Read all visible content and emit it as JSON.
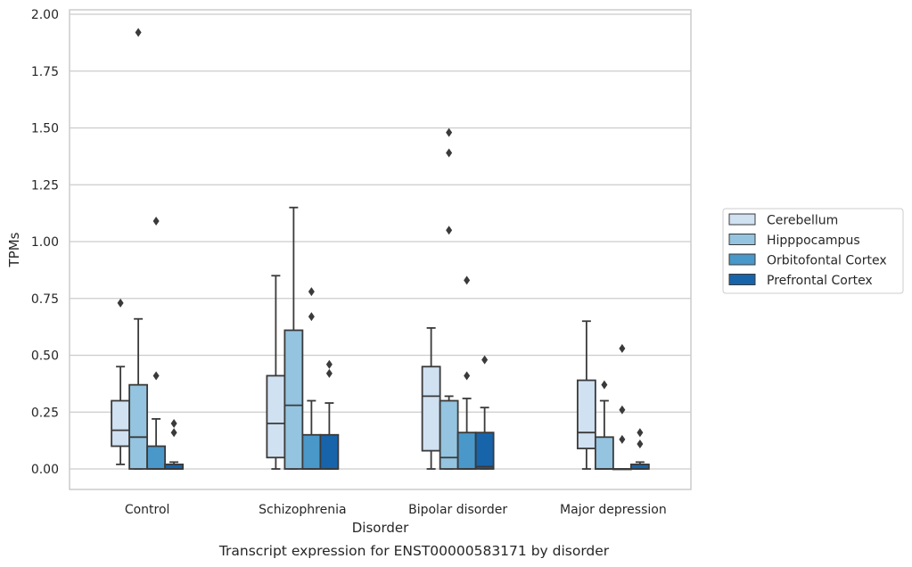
{
  "chart_data": {
    "type": "box",
    "caption": "Transcript expression for ENST00000583171 by disorder",
    "xlabel": "Disorder",
    "ylabel": "TPMs",
    "ylim": [
      -0.09,
      2.02
    ],
    "yticks": [
      "0.00",
      "0.25",
      "0.50",
      "0.75",
      "1.00",
      "1.25",
      "1.50",
      "1.75",
      "2.00"
    ],
    "categories": [
      "Control",
      "Schizophrenia",
      "Bipolar disorder",
      "Major depression"
    ],
    "grid": true,
    "legend_position": "right",
    "series": [
      {
        "name": "Cerebellum",
        "color": "#d0e1f2",
        "boxes": [
          {
            "whislo": 0.02,
            "q1": 0.1,
            "med": 0.17,
            "q3": 0.3,
            "whishi": 0.45,
            "fliers": [
              0.73
            ]
          },
          {
            "whislo": 0.0,
            "q1": 0.05,
            "med": 0.2,
            "q3": 0.41,
            "whishi": 0.85,
            "fliers": []
          },
          {
            "whislo": 0.0,
            "q1": 0.08,
            "med": 0.32,
            "q3": 0.45,
            "whishi": 0.62,
            "fliers": []
          },
          {
            "whislo": 0.0,
            "q1": 0.09,
            "med": 0.16,
            "q3": 0.39,
            "whishi": 0.65,
            "fliers": []
          }
        ]
      },
      {
        "name": "Hipppocampus",
        "color": "#94c4df",
        "boxes": [
          {
            "whislo": 0.0,
            "q1": 0.0,
            "med": 0.14,
            "q3": 0.37,
            "whishi": 0.66,
            "fliers": [
              1.92
            ]
          },
          {
            "whislo": 0.0,
            "q1": 0.0,
            "med": 0.28,
            "q3": 0.61,
            "whishi": 1.15,
            "fliers": []
          },
          {
            "whislo": 0.0,
            "q1": 0.0,
            "med": 0.05,
            "q3": 0.3,
            "whishi": 0.32,
            "fliers": [
              1.48,
              1.39,
              1.05
            ]
          },
          {
            "whislo": 0.0,
            "q1": 0.0,
            "med": 0.0,
            "q3": 0.14,
            "whishi": 0.3,
            "fliers": [
              0.37
            ]
          }
        ]
      },
      {
        "name": "Orbitofontal Cortex",
        "color": "#4a98c9",
        "boxes": [
          {
            "whislo": 0.0,
            "q1": 0.0,
            "med": 0.0,
            "q3": 0.1,
            "whishi": 0.22,
            "fliers": [
              1.09,
              0.41
            ]
          },
          {
            "whislo": 0.0,
            "q1": 0.0,
            "med": 0.0,
            "q3": 0.15,
            "whishi": 0.3,
            "fliers": [
              0.78,
              0.67
            ]
          },
          {
            "whislo": 0.0,
            "q1": 0.0,
            "med": 0.0,
            "q3": 0.16,
            "whishi": 0.31,
            "fliers": [
              0.83,
              0.41
            ]
          },
          {
            "whislo": 0.0,
            "q1": 0.0,
            "med": 0.0,
            "q3": 0.0,
            "whishi": 0.0,
            "fliers": [
              0.53,
              0.26,
              0.13
            ]
          }
        ]
      },
      {
        "name": "Prefrontal Cortex",
        "color": "#1764ab",
        "boxes": [
          {
            "whislo": 0.0,
            "q1": 0.0,
            "med": 0.0,
            "q3": 0.02,
            "whishi": 0.03,
            "fliers": [
              0.2,
              0.16
            ]
          },
          {
            "whislo": 0.0,
            "q1": 0.0,
            "med": 0.0,
            "q3": 0.15,
            "whishi": 0.29,
            "fliers": [
              0.46,
              0.42
            ]
          },
          {
            "whislo": 0.0,
            "q1": 0.0,
            "med": 0.01,
            "q3": 0.16,
            "whishi": 0.27,
            "fliers": [
              0.48
            ]
          },
          {
            "whislo": 0.0,
            "q1": 0.0,
            "med": 0.0,
            "q3": 0.02,
            "whishi": 0.03,
            "fliers": [
              0.16,
              0.11
            ]
          }
        ]
      }
    ]
  }
}
